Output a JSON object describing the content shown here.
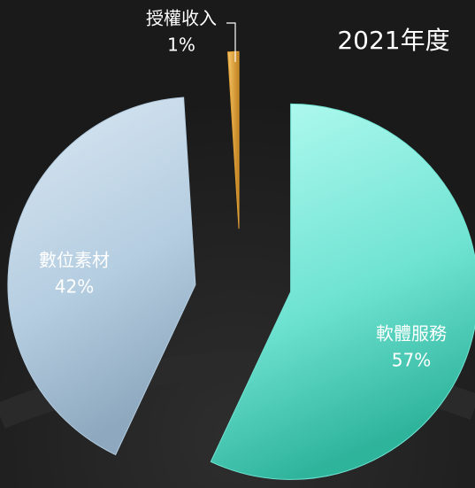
{
  "chart_data": {
    "type": "pie",
    "title": "2021年度",
    "categories": [
      "軟體服務",
      "數位素材",
      "授權收入"
    ],
    "values": [
      57,
      42,
      1
    ],
    "value_labels": [
      "57%",
      "42%",
      "1%"
    ],
    "colors": [
      "#6fe3d2",
      "#b4cde0",
      "#e0a035"
    ]
  }
}
